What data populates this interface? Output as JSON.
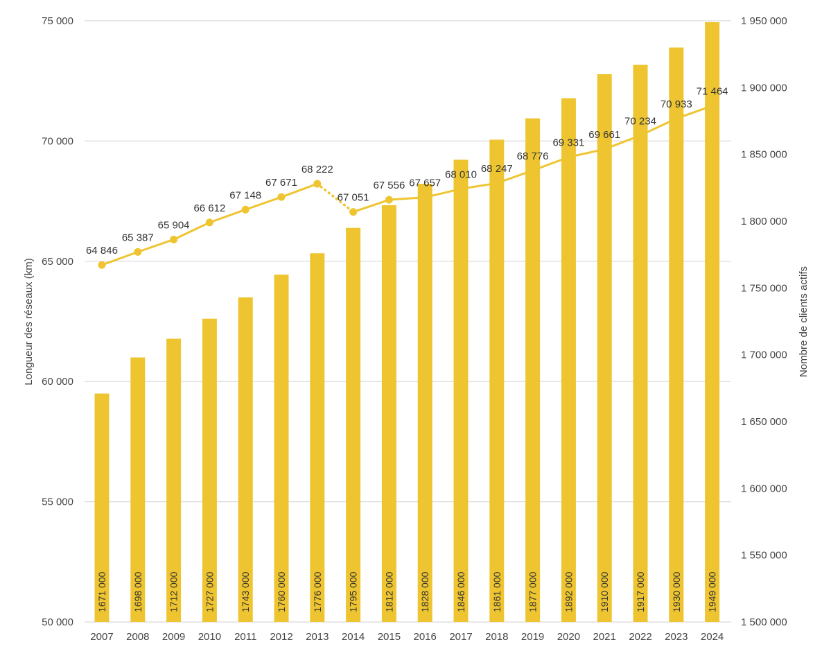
{
  "chart_data": {
    "type": "bar+line",
    "categories": [
      "2007",
      "2008",
      "2009",
      "2010",
      "2011",
      "2012",
      "2013",
      "2014",
      "2015",
      "2016",
      "2017",
      "2018",
      "2019",
      "2020",
      "2021",
      "2022",
      "2023",
      "2024"
    ],
    "series": [
      {
        "name": "Nombre de clients actifs",
        "type": "bar",
        "axis": "right",
        "color": "#EEC530",
        "values": [
          1671000,
          1698000,
          1712000,
          1727000,
          1743000,
          1760000,
          1776000,
          1795000,
          1812000,
          1828000,
          1846000,
          1861000,
          1877000,
          1892000,
          1910000,
          1917000,
          1930000,
          1949000
        ],
        "labels": [
          "1671 000",
          "1698 000",
          "1712 000",
          "1727 000",
          "1743 000",
          "1760 000",
          "1776 000",
          "1795 000",
          "1812 000",
          "1828 000",
          "1846 000",
          "1861 000",
          "1877 000",
          "1892 000",
          "1910 000",
          "1917 000",
          "1930 000",
          "1949 000"
        ]
      },
      {
        "name": "Longueur des réseaux (km)",
        "type": "line",
        "axis": "left",
        "color": "#EEC530",
        "values": [
          64846,
          65387,
          65904,
          66612,
          67148,
          67671,
          68222,
          67051,
          67556,
          67657,
          68010,
          68247,
          68776,
          69331,
          69661,
          70234,
          70933,
          71464
        ],
        "labels": [
          "64 846",
          "65 387",
          "65 904",
          "66 612",
          "67 148",
          "67 671",
          "68 222",
          "67 051",
          "67 556",
          "67 657",
          "68 010",
          "68 247",
          "68 776",
          "69 331",
          "69 661",
          "70 234",
          "70 933",
          "71 464"
        ],
        "markers_through": "2015",
        "dotted_segment": [
          "2013",
          "2014"
        ]
      }
    ],
    "y_left": {
      "label": "Longueur des réseaux (km)",
      "range": [
        50000,
        75000
      ],
      "ticks": [
        50000,
        55000,
        60000,
        65000,
        70000,
        75000
      ],
      "tick_labels": [
        "50 000",
        "55 000",
        "60 000",
        "65 000",
        "70 000",
        "75 000"
      ]
    },
    "y_right": {
      "label": "Nombre de clients actifs",
      "range": [
        1500000,
        1950000
      ],
      "ticks": [
        1500000,
        1550000,
        1600000,
        1650000,
        1700000,
        1750000,
        1800000,
        1850000,
        1900000,
        1950000
      ],
      "tick_labels": [
        "1 500 000",
        "1 550 000",
        "1 600 000",
        "1 650 000",
        "1 700 000",
        "1 750 000",
        "1 800 000",
        "1 850 000",
        "1 900 000",
        "1 950 000"
      ]
    },
    "grid": true,
    "legend": "none"
  }
}
